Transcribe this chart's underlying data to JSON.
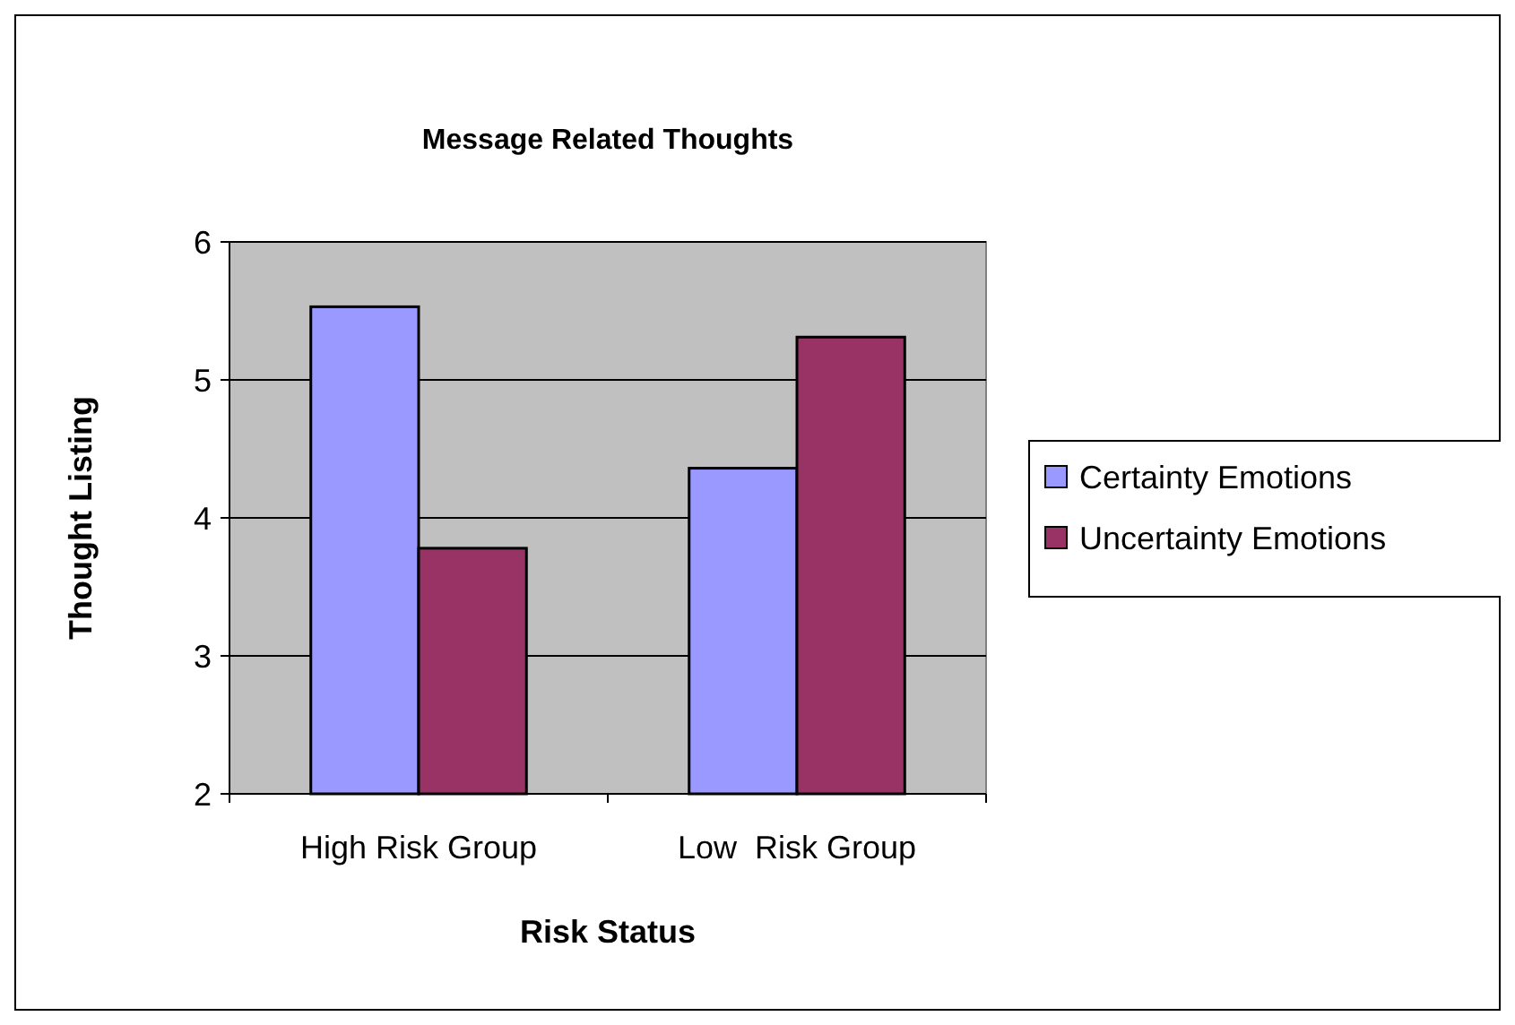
{
  "chart_data": {
    "type": "bar",
    "title": "Message Related Thoughts",
    "xlabel": "Risk Status",
    "ylabel": "Thought Listing",
    "categories": [
      "High Risk Group",
      "Low  Risk Group"
    ],
    "series": [
      {
        "name": "Certainty Emotions",
        "color": "#9999ff",
        "values": [
          5.53,
          4.36
        ]
      },
      {
        "name": "Uncertainty Emotions",
        "color": "#993366",
        "values": [
          3.78,
          5.31
        ]
      }
    ],
    "ylim": [
      2,
      6
    ],
    "yticks": [
      2,
      3,
      4,
      5,
      6
    ],
    "grid": "y",
    "legend": "right"
  }
}
